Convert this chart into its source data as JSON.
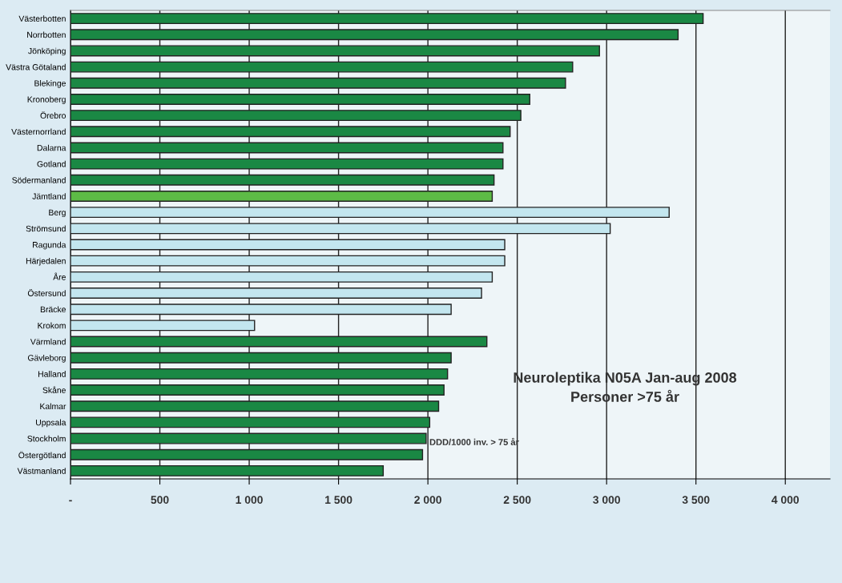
{
  "chart_data": {
    "type": "bar",
    "orientation": "horizontal",
    "title": "Neuroleptika N05A Jan-aug 2008",
    "subtitle": "Personer >75 år",
    "annotations": [
      "DDD/1000 inv. > 75 år"
    ],
    "categories": [
      "Västerbotten",
      "Norrbotten",
      "Jönköping",
      "Västra Götaland",
      "Blekinge",
      "Kronoberg",
      "Örebro",
      "Västernorrland",
      "Dalarna",
      "Gotland",
      "Södermanland",
      "Jämtland",
      "Berg",
      "Strömsund",
      "Ragunda",
      "Härjedalen",
      "Åre",
      "Östersund",
      "Bräcke",
      "Krokom",
      "Värmland",
      "Gävleborg",
      "Halland",
      "Skåne",
      "Kalmar",
      "Uppsala",
      "Stockholm",
      "Östergötland",
      "Västmanland"
    ],
    "values": [
      3540,
      3400,
      2960,
      2810,
      2770,
      2570,
      2520,
      2460,
      2420,
      2420,
      2370,
      2360,
      3350,
      3020,
      2430,
      2430,
      2360,
      2300,
      2130,
      1030,
      2330,
      2130,
      2110,
      2090,
      2060,
      2010,
      1990,
      1970,
      1750
    ],
    "colors": [
      "#1a8844",
      "#1a8844",
      "#1a8844",
      "#1a8844",
      "#1a8844",
      "#1a8844",
      "#1a8844",
      "#1a8844",
      "#1a8844",
      "#1a8844",
      "#1a8844",
      "#5dbb46",
      "#c3e6ef",
      "#c3e6ef",
      "#c3e6ef",
      "#c3e6ef",
      "#c3e6ef",
      "#c3e6ef",
      "#c3e6ef",
      "#c3e6ef",
      "#1a8844",
      "#1a8844",
      "#1a8844",
      "#1a8844",
      "#1a8844",
      "#1a8844",
      "#1a8844",
      "#1a8844",
      "#1a8844"
    ],
    "xlim": [
      0,
      4250
    ],
    "xticks": [
      {
        "value": 0,
        "label": "-"
      },
      {
        "value": 500,
        "label": "500"
      },
      {
        "value": 1000,
        "label": "1 000"
      },
      {
        "value": 1500,
        "label": "1 500"
      },
      {
        "value": 2000,
        "label": "2 000"
      },
      {
        "value": 2500,
        "label": "2 500"
      },
      {
        "value": 3000,
        "label": "3 000"
      },
      {
        "value": 3500,
        "label": "3 500"
      },
      {
        "value": 4000,
        "label": "4 000"
      }
    ],
    "grid": "x",
    "legend": false
  }
}
